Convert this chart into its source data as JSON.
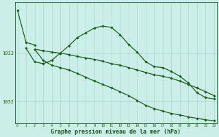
{
  "background_color": "#cceee8",
  "grid_color": "#a8d8d0",
  "line_color": "#1a5c1a",
  "xlabel": "Graphe pression niveau de la mer (hPa)",
  "xlabel_fontsize": 6.0,
  "ytick_labels": [
    "1032",
    "1033"
  ],
  "ytick_values": [
    1032,
    1033
  ],
  "ylim": [
    1031.55,
    1034.05
  ],
  "xlim": [
    -0.3,
    23.3
  ],
  "xtick_values": [
    0,
    1,
    2,
    3,
    4,
    5,
    6,
    7,
    8,
    9,
    10,
    11,
    12,
    13,
    14,
    15,
    16,
    17,
    18,
    19,
    20,
    21,
    22,
    23
  ],
  "series": [
    {
      "x": [
        0,
        1,
        2
      ],
      "y": [
        1033.88,
        1033.22,
        1033.17
      ],
      "linestyle": "-",
      "linewidth": 0.9,
      "marker": "D",
      "markersize": 1.8
    },
    {
      "x": [
        1,
        2,
        3,
        4,
        5,
        6,
        7,
        8,
        9,
        10,
        11,
        12,
        13,
        14,
        15,
        16,
        17,
        18,
        19,
        20,
        21,
        22,
        23
      ],
      "y": [
        1033.1,
        1032.82,
        1032.78,
        1032.85,
        1033.0,
        1033.15,
        1033.32,
        1033.42,
        1033.52,
        1033.56,
        1033.53,
        1033.38,
        1033.18,
        1033.02,
        1032.82,
        1032.72,
        1032.7,
        1032.62,
        1032.52,
        1032.38,
        1032.18,
        1032.08,
        1032.05
      ],
      "linestyle": "-",
      "linewidth": 0.9,
      "marker": "D",
      "markersize": 1.8
    },
    {
      "x": [
        2,
        3,
        4,
        5,
        6,
        7,
        8,
        9,
        10,
        11,
        12,
        13,
        14,
        15,
        16,
        17,
        18,
        19,
        20,
        21,
        22,
        23
      ],
      "y": [
        1033.08,
        1033.05,
        1033.02,
        1033.0,
        1032.97,
        1032.93,
        1032.9,
        1032.87,
        1032.83,
        1032.78,
        1032.75,
        1032.7,
        1032.65,
        1032.6,
        1032.55,
        1032.52,
        1032.48,
        1032.42,
        1032.35,
        1032.28,
        1032.2,
        1032.12
      ],
      "linestyle": "-",
      "linewidth": 0.9,
      "marker": "D",
      "markersize": 1.8
    },
    {
      "x": [
        2,
        3,
        4,
        5,
        6,
        7,
        8,
        9,
        10,
        11,
        12,
        13,
        14,
        15,
        16,
        17,
        18,
        19,
        20,
        21,
        22,
        23
      ],
      "y": [
        1033.08,
        1032.85,
        1032.75,
        1032.7,
        1032.65,
        1032.58,
        1032.5,
        1032.42,
        1032.35,
        1032.28,
        1032.2,
        1032.12,
        1032.02,
        1031.92,
        1031.85,
        1031.8,
        1031.75,
        1031.72,
        1031.68,
        1031.65,
        1031.62,
        1031.6
      ],
      "linestyle": "-",
      "linewidth": 0.9,
      "marker": "D",
      "markersize": 1.8
    }
  ]
}
